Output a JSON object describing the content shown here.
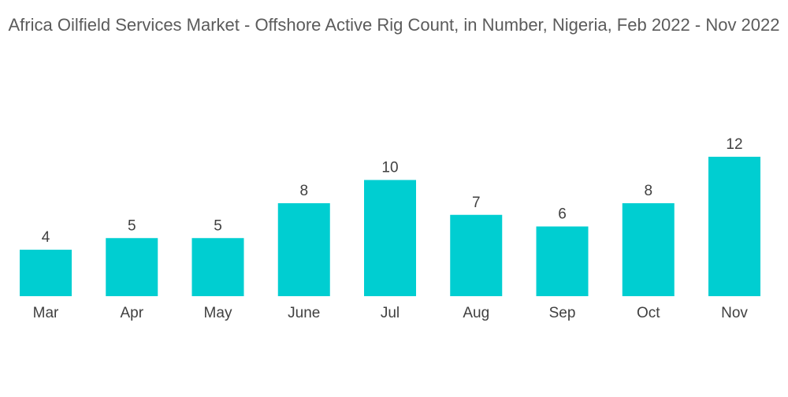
{
  "chart_data": {
    "type": "bar",
    "title": "Africa Oilfield Services Market - Offshore Active Rig Count, in Number, Nigeria, Feb 2022 - Nov 2022",
    "xlabel": "",
    "ylabel": "",
    "categories": [
      "Mar",
      "Apr",
      "May",
      "June",
      "Jul",
      "Aug",
      "Sep",
      "Oct",
      "Nov"
    ],
    "values": [
      4,
      5,
      5,
      8,
      10,
      7,
      6,
      8,
      12
    ],
    "data_labels": true,
    "grid": false,
    "legend": "none",
    "bar_color": "#00ced1"
  }
}
